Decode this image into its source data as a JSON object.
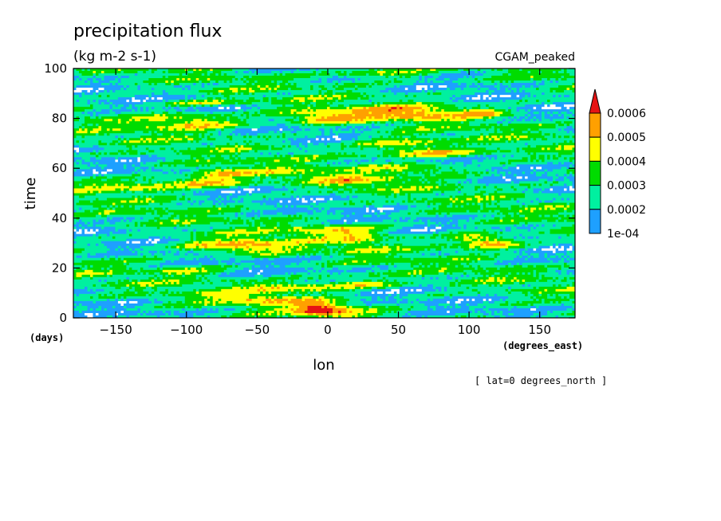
{
  "chart_data": {
    "type": "heatmap",
    "title": "precipitation flux",
    "units": "(kg m-2 s-1)",
    "run_label": "CGAM_peaked",
    "xlabel": "lon",
    "x_units": "(degrees_east)",
    "ylabel": "time",
    "y_units": "(days)",
    "footnote": "[ lat=0 degrees_north ]",
    "xlim": [
      -180,
      175
    ],
    "ylim": [
      0,
      100
    ],
    "x_ticks": [
      "-150",
      "-100",
      "-50",
      "0",
      "50",
      "100",
      "150"
    ],
    "y_ticks": [
      "0",
      "20",
      "40",
      "60",
      "80",
      "100"
    ],
    "colorbar": {
      "levels": [
        "1e-04",
        "0.0002",
        "0.0003",
        "0.0004",
        "0.0005",
        "0.0006"
      ],
      "colors": [
        "#1ea0ff",
        "#00f0a0",
        "#00dc00",
        "#ffff00",
        "#ffa000",
        "#e61414"
      ],
      "below_color": "#ffffff",
      "extend": "max"
    }
  }
}
